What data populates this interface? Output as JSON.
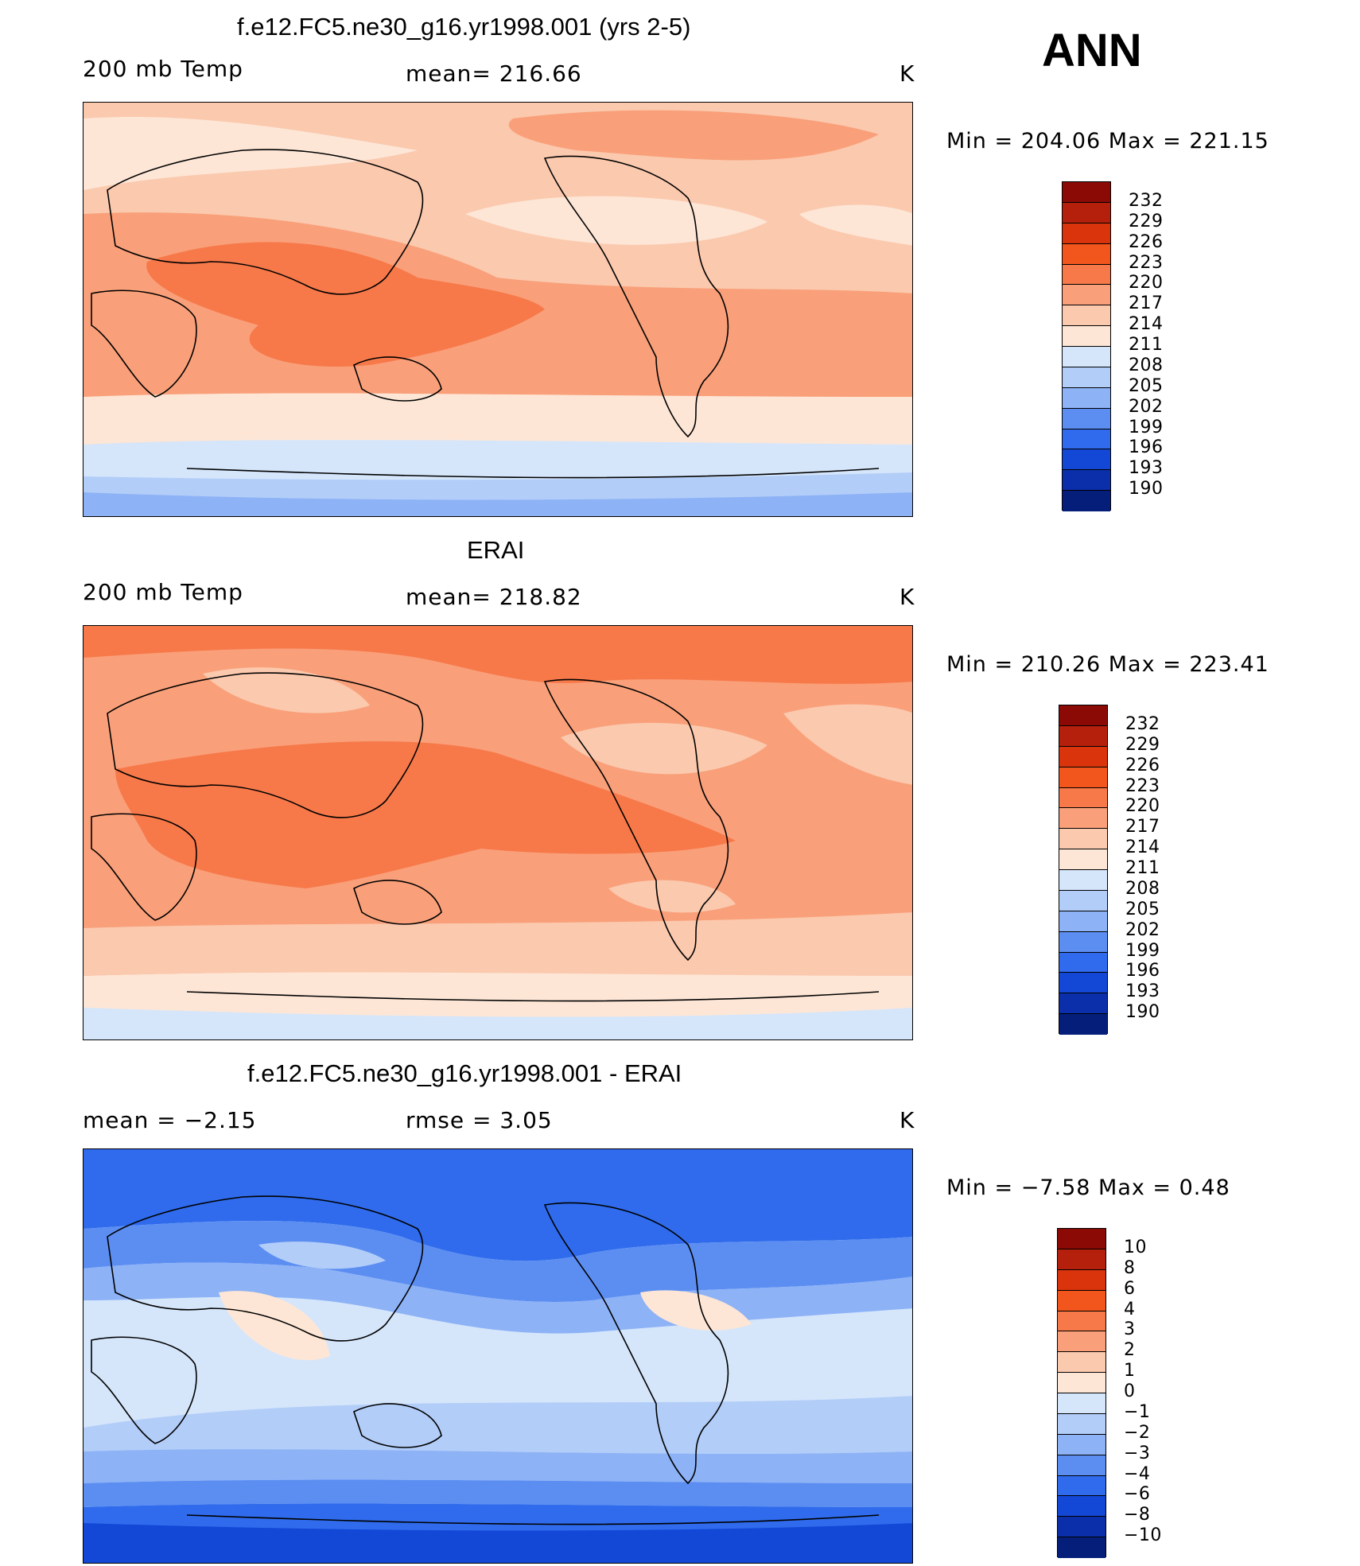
{
  "season": "ANN",
  "panels": [
    {
      "title": "f.e12.FC5.ne30_g16.yr1998.001 (yrs 2-5)",
      "left_label": "200 mb Temp",
      "center_label": "mean= 216.66",
      "units": "K",
      "minmax": "Min = 204.06 Max = 221.15",
      "colorbar": {
        "labels": [
          "232",
          "229",
          "226",
          "223",
          "220",
          "217",
          "214",
          "211",
          "208",
          "205",
          "202",
          "199",
          "196",
          "193",
          "190"
        ],
        "colors": [
          "#8b0a06",
          "#b5200c",
          "#d9340c",
          "#f2561c",
          "#f7794a",
          "#f9a07a",
          "#fbc9ae",
          "#fde6d6",
          "#d5e6fb",
          "#b2cdf8",
          "#8db2f6",
          "#5c8ef2",
          "#2f6bec",
          "#1347d6",
          "#0b2faa",
          "#041e7a"
        ]
      },
      "fill": {
        "bands": [
          "#8db2f6",
          "#b2cdf8",
          "#d5e6fb",
          "#fde6d6",
          "#fbc9ae",
          "#f9a07a",
          "#f7794a"
        ]
      }
    },
    {
      "title": "ERAI",
      "left_label": "200 mb Temp",
      "center_label": "mean= 218.82",
      "units": "K",
      "minmax": "Min = 210.26 Max = 223.41",
      "colorbar": {
        "labels": [
          "232",
          "229",
          "226",
          "223",
          "220",
          "217",
          "214",
          "211",
          "208",
          "205",
          "202",
          "199",
          "196",
          "193",
          "190"
        ],
        "colors": [
          "#8b0a06",
          "#b5200c",
          "#d9340c",
          "#f2561c",
          "#f7794a",
          "#f9a07a",
          "#fbc9ae",
          "#fde6d6",
          "#d5e6fb",
          "#b2cdf8",
          "#8db2f6",
          "#5c8ef2",
          "#2f6bec",
          "#1347d6",
          "#0b2faa",
          "#041e7a"
        ]
      }
    },
    {
      "title": "f.e12.FC5.ne30_g16.yr1998.001 - ERAI",
      "left_label": "mean = −2.15",
      "center_label": "rmse = 3.05",
      "units": "K",
      "minmax": "Min = −7.58 Max = 0.48",
      "colorbar": {
        "labels": [
          "10",
          "8",
          "6",
          "4",
          "3",
          "2",
          "1",
          "0",
          "−1",
          "−2",
          "−3",
          "−4",
          "−6",
          "−8",
          "−10"
        ],
        "colors": [
          "#8b0a06",
          "#b5200c",
          "#d9340c",
          "#f2561c",
          "#f7794a",
          "#f9a07a",
          "#fbc9ae",
          "#fde6d6",
          "#d5e6fb",
          "#b2cdf8",
          "#8db2f6",
          "#5c8ef2",
          "#2f6bec",
          "#1347d6",
          "#0b2faa",
          "#041e7a"
        ]
      }
    }
  ]
}
